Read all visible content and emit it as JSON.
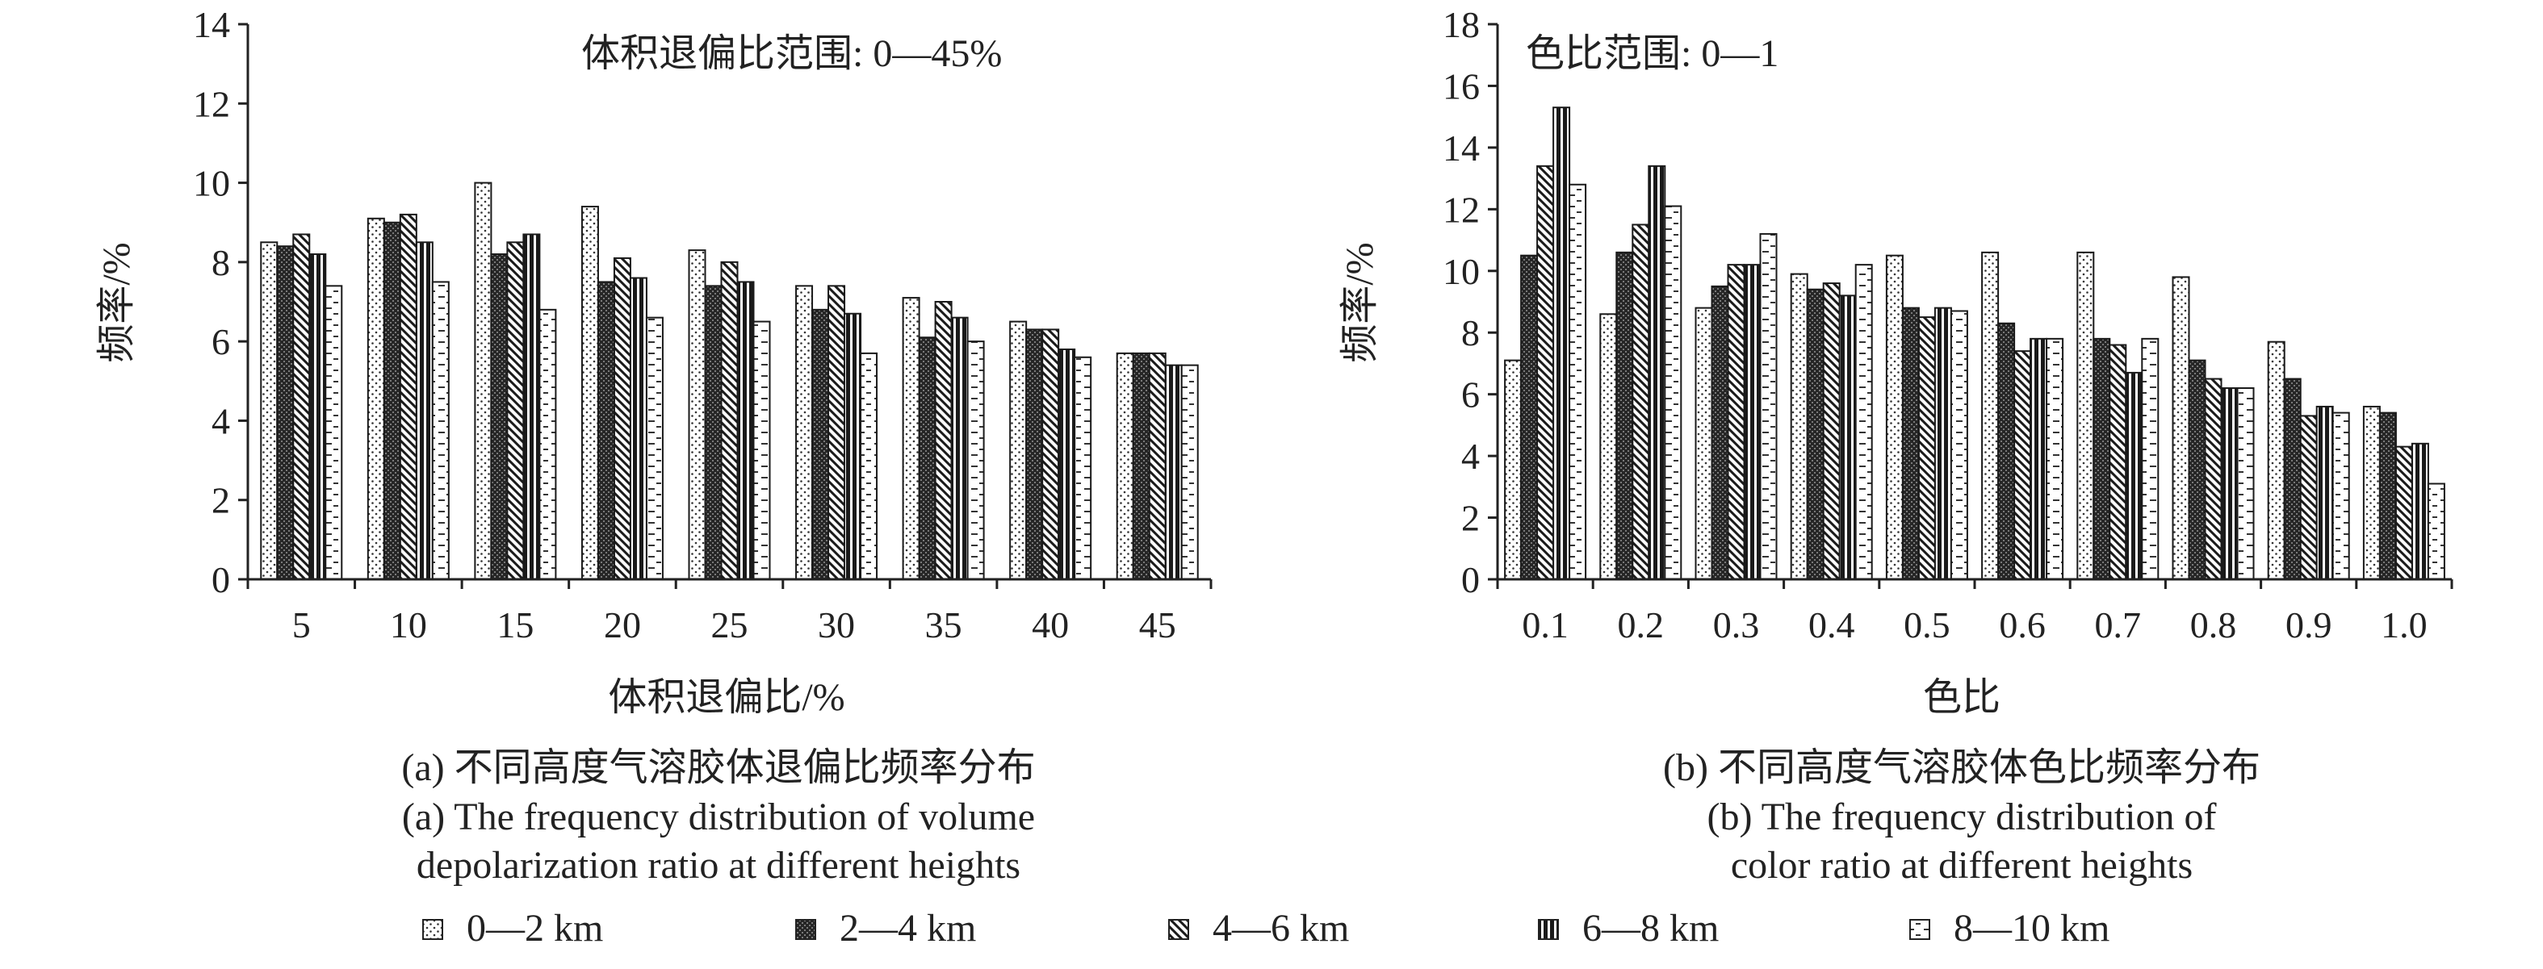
{
  "chart_data": [
    {
      "type": "bar",
      "caption_cn": "(a) 不同高度气溶胶体退偏比频率分布",
      "caption_en_1": "(a) The frequency distribution of volume",
      "caption_en_2": "depolarization ratio at different heights",
      "annotation": "体积退偏比范围: 0—45%",
      "xlabel": "体积退偏比/%",
      "ylabel": "频率/%",
      "ylim": [
        0,
        14
      ],
      "yticks": [
        "0",
        "2",
        "4",
        "6",
        "8",
        "10",
        "12",
        "14"
      ],
      "categories": [
        "5",
        "10",
        "15",
        "20",
        "25",
        "30",
        "35",
        "40",
        "45"
      ],
      "series": [
        {
          "name": "0—2 km",
          "values": [
            8.5,
            9.1,
            10.0,
            9.4,
            8.3,
            7.4,
            7.1,
            6.5,
            5.7
          ]
        },
        {
          "name": "2—4 km",
          "values": [
            8.4,
            9.0,
            8.2,
            7.5,
            7.4,
            6.8,
            6.1,
            6.3,
            5.7
          ]
        },
        {
          "name": "4—6 km",
          "values": [
            8.7,
            9.2,
            8.5,
            8.1,
            8.0,
            7.4,
            7.0,
            6.3,
            5.7
          ]
        },
        {
          "name": "6—8 km",
          "values": [
            8.2,
            8.5,
            8.7,
            7.6,
            7.5,
            6.7,
            6.6,
            5.8,
            5.4
          ]
        },
        {
          "name": "8—10 km",
          "values": [
            7.4,
            7.5,
            6.8,
            6.6,
            6.5,
            5.7,
            6.0,
            5.6,
            5.4
          ]
        }
      ]
    },
    {
      "type": "bar",
      "caption_cn": "(b) 不同高度气溶胶体色比频率分布",
      "caption_en_1": "(b) The frequency distribution of",
      "caption_en_2": "color ratio at different heights",
      "annotation": "色比范围: 0—1",
      "xlabel": "色比",
      "ylabel": "频率/%",
      "ylim": [
        0,
        18
      ],
      "yticks": [
        "0",
        "2",
        "4",
        "6",
        "8",
        "10",
        "12",
        "14",
        "16",
        "18"
      ],
      "categories": [
        "0.1",
        "0.2",
        "0.3",
        "0.4",
        "0.5",
        "0.6",
        "0.7",
        "0.8",
        "0.9",
        "1.0"
      ],
      "series": [
        {
          "name": "0—2 km",
          "values": [
            7.1,
            8.6,
            8.8,
            9.9,
            10.5,
            10.6,
            10.6,
            9.8,
            7.7,
            5.6
          ]
        },
        {
          "name": "2—4 km",
          "values": [
            10.5,
            10.6,
            9.5,
            9.4,
            8.8,
            8.3,
            7.8,
            7.1,
            6.5,
            5.4
          ]
        },
        {
          "name": "4—6 km",
          "values": [
            13.4,
            11.5,
            10.2,
            9.6,
            8.5,
            7.4,
            7.6,
            6.5,
            5.3,
            4.3
          ]
        },
        {
          "name": "6—8 km",
          "values": [
            15.3,
            13.4,
            10.2,
            9.2,
            8.8,
            7.8,
            6.7,
            6.2,
            5.6,
            4.4
          ]
        },
        {
          "name": "8—10 km",
          "values": [
            12.8,
            12.1,
            11.2,
            10.2,
            8.7,
            7.8,
            7.8,
            6.2,
            5.4,
            3.1
          ]
        }
      ]
    }
  ],
  "legend": {
    "items": [
      {
        "label": "0—2 km",
        "pattern": "dots"
      },
      {
        "label": "2—4 km",
        "pattern": "dark"
      },
      {
        "label": "4—6 km",
        "pattern": "diagonal"
      },
      {
        "label": "6—8 km",
        "pattern": "vertical"
      },
      {
        "label": "8—10 km",
        "pattern": "dashes"
      }
    ]
  }
}
